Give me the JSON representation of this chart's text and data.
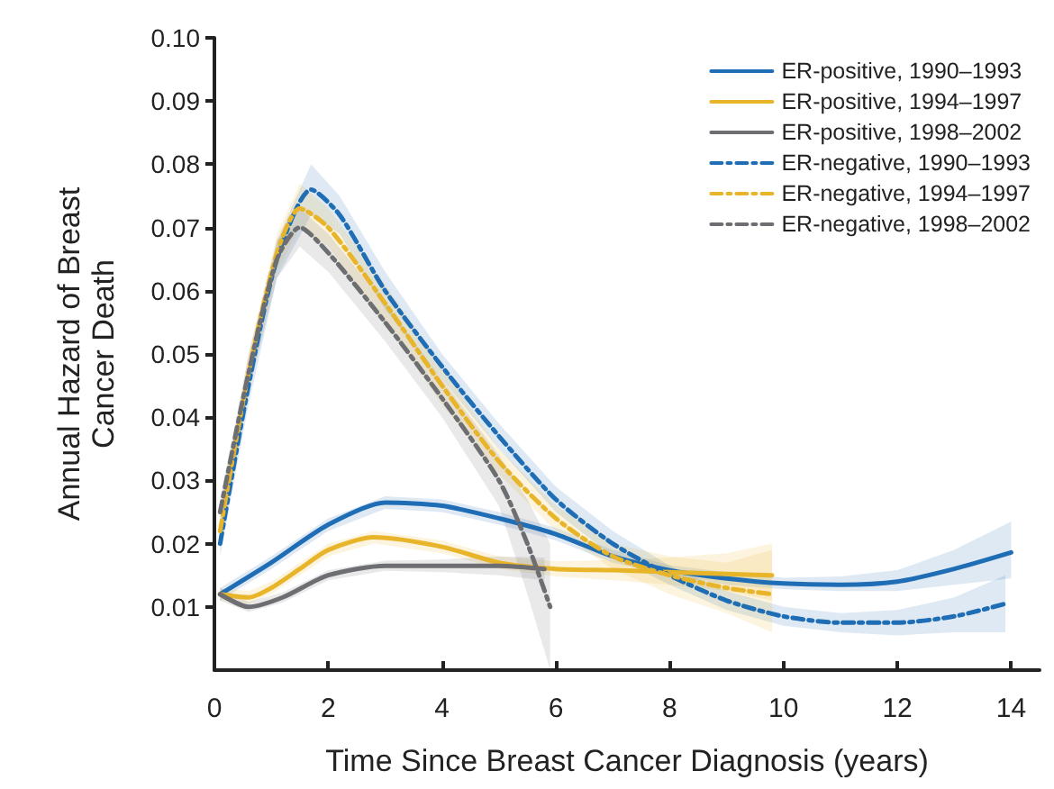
{
  "chart_data": {
    "type": "line",
    "xlabel": "Time Since Breast Cancer Diagnosis (years)",
    "ylabel": "Annual Hazard of Breast Cancer Death",
    "xlim": [
      0,
      14.5
    ],
    "xticks": [
      0,
      2,
      4,
      6,
      8,
      10,
      12,
      14
    ],
    "ylim": [
      0,
      0.1
    ],
    "yticks": [
      0.01,
      0.02,
      0.03,
      0.04,
      0.05,
      0.06,
      0.07,
      0.08,
      0.09,
      {
        "value": 0.1,
        "label": "0.10"
      }
    ],
    "grid": false,
    "legend": "top right",
    "marker": "none",
    "series": [
      {
        "name": "ER-positive, 1990–1993",
        "color": "#1f6db5",
        "line_style": "solid",
        "x": [
          0.1,
          1,
          2,
          3,
          4,
          5,
          6,
          7,
          8,
          9,
          10,
          11,
          12,
          13,
          14
        ],
        "values": [
          0.012,
          0.017,
          0.023,
          0.0265,
          0.026,
          0.024,
          0.0215,
          0.018,
          0.0158,
          0.0145,
          0.0137,
          0.0135,
          0.014,
          0.016,
          0.0186
        ],
        "lower": [
          0.011,
          0.016,
          0.022,
          0.0255,
          0.025,
          0.023,
          0.0205,
          0.017,
          0.015,
          0.0135,
          0.0128,
          0.0125,
          0.0125,
          0.0135,
          0.0145
        ],
        "upper": [
          0.013,
          0.018,
          0.024,
          0.0275,
          0.027,
          0.025,
          0.0225,
          0.019,
          0.0166,
          0.0155,
          0.0146,
          0.0148,
          0.0158,
          0.019,
          0.0235
        ]
      },
      {
        "name": "ER-positive, 1994–1997",
        "color": "#e8b52a",
        "line_style": "solid",
        "x": [
          0.1,
          0.6,
          1,
          1.5,
          2,
          2.8,
          4,
          5,
          6,
          7,
          8,
          9,
          9.8
        ],
        "values": [
          0.012,
          0.0115,
          0.013,
          0.016,
          0.019,
          0.021,
          0.0195,
          0.017,
          0.016,
          0.0158,
          0.0155,
          0.0152,
          0.015
        ],
        "lower": [
          0.011,
          0.0105,
          0.012,
          0.015,
          0.018,
          0.02,
          0.0185,
          0.016,
          0.0148,
          0.0142,
          0.0135,
          0.0125,
          0.011
        ],
        "upper": [
          0.013,
          0.0125,
          0.014,
          0.017,
          0.02,
          0.022,
          0.0205,
          0.018,
          0.0172,
          0.0174,
          0.0178,
          0.0185,
          0.02
        ]
      },
      {
        "name": "ER-positive, 1998–2002",
        "color": "#6d6e71",
        "line_style": "solid",
        "x": [
          0.1,
          0.6,
          1.2,
          2,
          3,
          4,
          5,
          5.8
        ],
        "values": [
          0.012,
          0.01,
          0.0115,
          0.015,
          0.0165,
          0.0165,
          0.0165,
          0.016
        ],
        "lower": [
          0.011,
          0.0092,
          0.0107,
          0.0142,
          0.0157,
          0.0155,
          0.015,
          0.0142
        ],
        "upper": [
          0.013,
          0.0108,
          0.0123,
          0.0158,
          0.0173,
          0.0175,
          0.018,
          0.0178
        ]
      },
      {
        "name": "ER-negative, 1990–1993",
        "color": "#1f6db5",
        "line_style": "dashed",
        "x": [
          0.1,
          0.6,
          1.1,
          1.7,
          2.2,
          3,
          4,
          5,
          6,
          7,
          8,
          9,
          10,
          11,
          12,
          13,
          13.9
        ],
        "values": [
          0.02,
          0.045,
          0.065,
          0.076,
          0.072,
          0.06,
          0.048,
          0.037,
          0.027,
          0.02,
          0.015,
          0.011,
          0.0085,
          0.0075,
          0.0075,
          0.0085,
          0.0105
        ],
        "lower": [
          0.018,
          0.042,
          0.062,
          0.072,
          0.069,
          0.057,
          0.046,
          0.035,
          0.025,
          0.018,
          0.0135,
          0.0095,
          0.007,
          0.006,
          0.0055,
          0.006,
          0.006
        ],
        "upper": [
          0.022,
          0.048,
          0.068,
          0.08,
          0.075,
          0.063,
          0.05,
          0.039,
          0.029,
          0.022,
          0.0165,
          0.0125,
          0.01,
          0.009,
          0.0095,
          0.0115,
          0.015
        ]
      },
      {
        "name": "ER-negative, 1994–1997",
        "color": "#e8b52a",
        "line_style": "dashed",
        "x": [
          0.1,
          0.6,
          1.1,
          1.5,
          2,
          3,
          4,
          5,
          6,
          7,
          8,
          9,
          9.8
        ],
        "values": [
          0.022,
          0.047,
          0.066,
          0.073,
          0.07,
          0.058,
          0.045,
          0.033,
          0.024,
          0.018,
          0.015,
          0.013,
          0.012
        ],
        "lower": [
          0.02,
          0.044,
          0.063,
          0.07,
          0.067,
          0.055,
          0.042,
          0.031,
          0.022,
          0.016,
          0.012,
          0.009,
          0.006
        ],
        "upper": [
          0.024,
          0.05,
          0.069,
          0.077,
          0.073,
          0.061,
          0.048,
          0.035,
          0.026,
          0.02,
          0.018,
          0.017,
          0.019
        ]
      },
      {
        "name": "ER-negative, 1998–2002",
        "color": "#6d6e71",
        "line_style": "dashed",
        "x": [
          0.1,
          0.6,
          1.1,
          1.5,
          2,
          3,
          4,
          5,
          5.5,
          5.9
        ],
        "values": [
          0.025,
          0.047,
          0.065,
          0.07,
          0.066,
          0.055,
          0.043,
          0.03,
          0.02,
          0.01
        ],
        "lower": [
          0.023,
          0.044,
          0.062,
          0.067,
          0.063,
          0.052,
          0.04,
          0.026,
          0.012,
          0.0
        ],
        "upper": [
          0.027,
          0.05,
          0.068,
          0.073,
          0.069,
          0.058,
          0.046,
          0.034,
          0.027,
          0.02
        ]
      }
    ]
  }
}
